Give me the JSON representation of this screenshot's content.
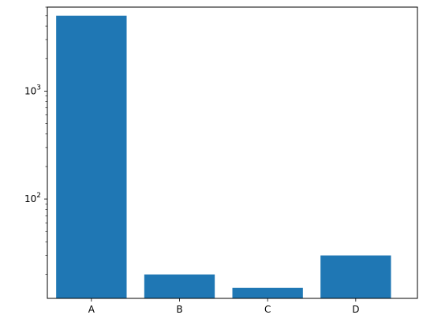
{
  "chart_data": {
    "type": "bar",
    "categories": [
      "A",
      "B",
      "C",
      "D"
    ],
    "values": [
      5000,
      20,
      15,
      30
    ],
    "title": "",
    "xlabel": "",
    "ylabel": "",
    "yscale": "log",
    "ylim": [
      12,
      6000
    ],
    "y_major_ticks": [
      {
        "value": 100,
        "base": "10",
        "exp": "2"
      },
      {
        "value": 1000,
        "base": "10",
        "exp": "3"
      }
    ],
    "grid": false,
    "legend": "none",
    "bar_color": "#1f77b4"
  }
}
